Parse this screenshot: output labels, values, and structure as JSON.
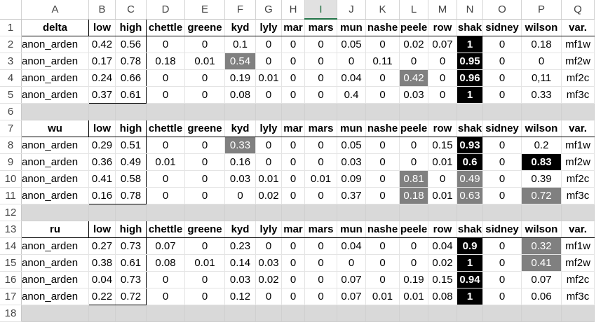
{
  "columns": [
    "A",
    "B",
    "C",
    "D",
    "E",
    "F",
    "G",
    "H",
    "I",
    "J",
    "K",
    "L",
    "M",
    "N",
    "O",
    "P",
    "Q"
  ],
  "selected_column": "I",
  "rows": [
    {
      "n": "1",
      "type": "header",
      "cells": [
        "delta",
        "low",
        "high",
        "chettle",
        "greene",
        "kyd",
        "lyly",
        "mar",
        "mars",
        "mun",
        "nashe",
        "peele",
        "row",
        "shak",
        "sidney",
        "wilson",
        "var."
      ]
    },
    {
      "n": "2",
      "type": "data",
      "cells": [
        "anon_arden",
        "0.42",
        "0.56",
        "0",
        "0",
        "0.1",
        "0",
        "0",
        "0",
        "0.05",
        "0",
        "0.02",
        "0.07",
        "1",
        "0",
        "0.18",
        "mf1w"
      ],
      "hl": {
        "13": "b"
      }
    },
    {
      "n": "3",
      "type": "data",
      "cells": [
        "anon_arden",
        "0.17",
        "0.78",
        "0.18",
        "0.01",
        "0.54",
        "0",
        "0",
        "0",
        "0",
        "0.11",
        "0",
        "0",
        "0.95",
        "0",
        "0",
        "mf2w"
      ],
      "hl": {
        "5": "g",
        "13": "b"
      }
    },
    {
      "n": "4",
      "type": "data",
      "cells": [
        "anon_arden",
        "0.24",
        "0.66",
        "0",
        "0",
        "0.19",
        "0.01",
        "0",
        "0",
        "0.04",
        "0",
        "0.42",
        "0",
        "0.96",
        "0",
        "0,11",
        "mf2c"
      ],
      "hl": {
        "11": "g",
        "13": "b"
      }
    },
    {
      "n": "5",
      "type": "data",
      "last": true,
      "cells": [
        "anon_arden",
        "0.37",
        "0.61",
        "0",
        "0",
        "0.08",
        "0",
        "0",
        "0",
        "0.4",
        "0",
        "0.03",
        "0",
        "1",
        "0",
        "0.33",
        "mf3c"
      ],
      "hl": {
        "13": "b"
      }
    },
    {
      "n": "6",
      "type": "gap"
    },
    {
      "n": "7",
      "type": "header",
      "cells": [
        "wu",
        "low",
        "high",
        "chettle",
        "greene",
        "kyd",
        "lyly",
        "mar",
        "mars",
        "mun",
        "nashe",
        "peele",
        "row",
        "shak",
        "sidney",
        "wilson",
        "var."
      ]
    },
    {
      "n": "8",
      "type": "data",
      "cells": [
        "anon_arden",
        "0.29",
        "0.51",
        "0",
        "0",
        "0.33",
        "0",
        "0",
        "0",
        "0.05",
        "0",
        "0",
        "0.15",
        "0.93",
        "0",
        "0.2",
        "mf1w"
      ],
      "hl": {
        "5": "g",
        "13": "b"
      }
    },
    {
      "n": "9",
      "type": "data",
      "cells": [
        "anon_arden",
        "0.36",
        "0.49",
        "0.01",
        "0",
        "0.16",
        "0",
        "0",
        "0",
        "0.03",
        "0",
        "0",
        "0.01",
        "0.6",
        "0",
        "0.83",
        "mf2w"
      ],
      "hl": {
        "13": "b",
        "15": "b"
      }
    },
    {
      "n": "10",
      "type": "data",
      "cells": [
        "anon_arden",
        "0.41",
        "0.58",
        "0",
        "0",
        "0.03",
        "0.01",
        "0",
        "0.01",
        "0.09",
        "0",
        "0.81",
        "0",
        "0.49",
        "0",
        "0.39",
        "mf2c"
      ],
      "hl": {
        "11": "g",
        "13": "g"
      }
    },
    {
      "n": "11",
      "type": "data",
      "last": true,
      "cells": [
        "anon_arden",
        "0.16",
        "0.78",
        "0",
        "0",
        "0",
        "0.02",
        "0",
        "0",
        "0.37",
        "0",
        "0.18",
        "0.01",
        "0.63",
        "0",
        "0.72",
        "mf3c"
      ],
      "hl": {
        "11": "g",
        "13": "g",
        "15": "g"
      }
    },
    {
      "n": "12",
      "type": "gap"
    },
    {
      "n": "13",
      "type": "header",
      "cells": [
        "ru",
        "low",
        "high",
        "chettle",
        "greene",
        "kyd",
        "lyly",
        "mar",
        "mars",
        "mun",
        "nashe",
        "peele",
        "row",
        "shak",
        "sidney",
        "wilson",
        "var."
      ]
    },
    {
      "n": "14",
      "type": "data",
      "cells": [
        "anon_arden",
        "0.27",
        "0.73",
        "0.07",
        "0",
        "0.23",
        "0",
        "0",
        "0",
        "0.04",
        "0",
        "0",
        "0.04",
        "0.9",
        "0",
        "0.32",
        "mf1w"
      ],
      "hl": {
        "13": "b",
        "15": "g"
      }
    },
    {
      "n": "15",
      "type": "data",
      "cells": [
        "anon_arden",
        "0.38",
        "0.61",
        "0.08",
        "0.01",
        "0.14",
        "0.03",
        "0",
        "0",
        "0",
        "0",
        "0",
        "0.02",
        "1",
        "0",
        "0.41",
        "mf2w"
      ],
      "hl": {
        "13": "b",
        "15": "g"
      }
    },
    {
      "n": "16",
      "type": "data",
      "cells": [
        "anon_arden",
        "0.04",
        "0.73",
        "0",
        "0",
        "0.03",
        "0.02",
        "0",
        "0",
        "0.07",
        "0",
        "0.19",
        "0.15",
        "0.94",
        "0",
        "0.07",
        "mf2c"
      ],
      "hl": {
        "13": "b"
      }
    },
    {
      "n": "17",
      "type": "data",
      "last": true,
      "cells": [
        "anon_arden",
        "0.22",
        "0.72",
        "0",
        "0",
        "0.12",
        "0",
        "0",
        "0",
        "0.07",
        "0.01",
        "0.01",
        "0.08",
        "1",
        "0",
        "0.06",
        "mf3c"
      ],
      "hl": {
        "13": "b"
      }
    },
    {
      "n": "18",
      "type": "gap"
    }
  ]
}
